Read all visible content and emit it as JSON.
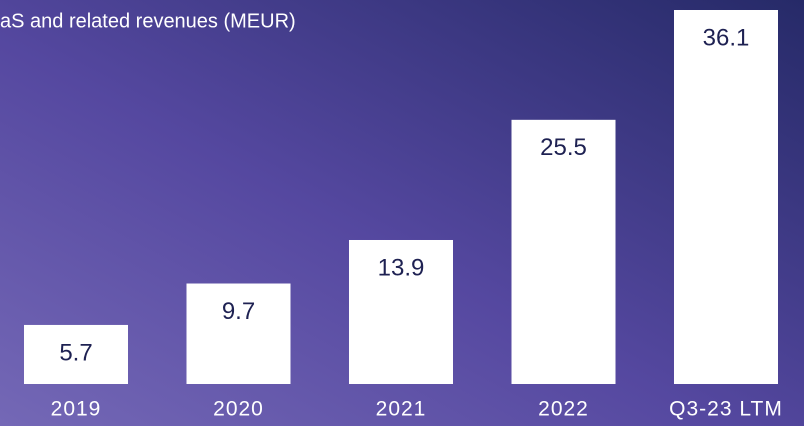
{
  "chart_data": {
    "type": "bar",
    "title": "aS and related revenues (MEUR)",
    "categories": [
      "2019",
      "2020",
      "2021",
      "2022",
      "Q3-23 LTM"
    ],
    "values": [
      5.7,
      9.7,
      13.9,
      25.5,
      36.1
    ],
    "color": "#ffffff",
    "label_color": "#1e2152"
  }
}
